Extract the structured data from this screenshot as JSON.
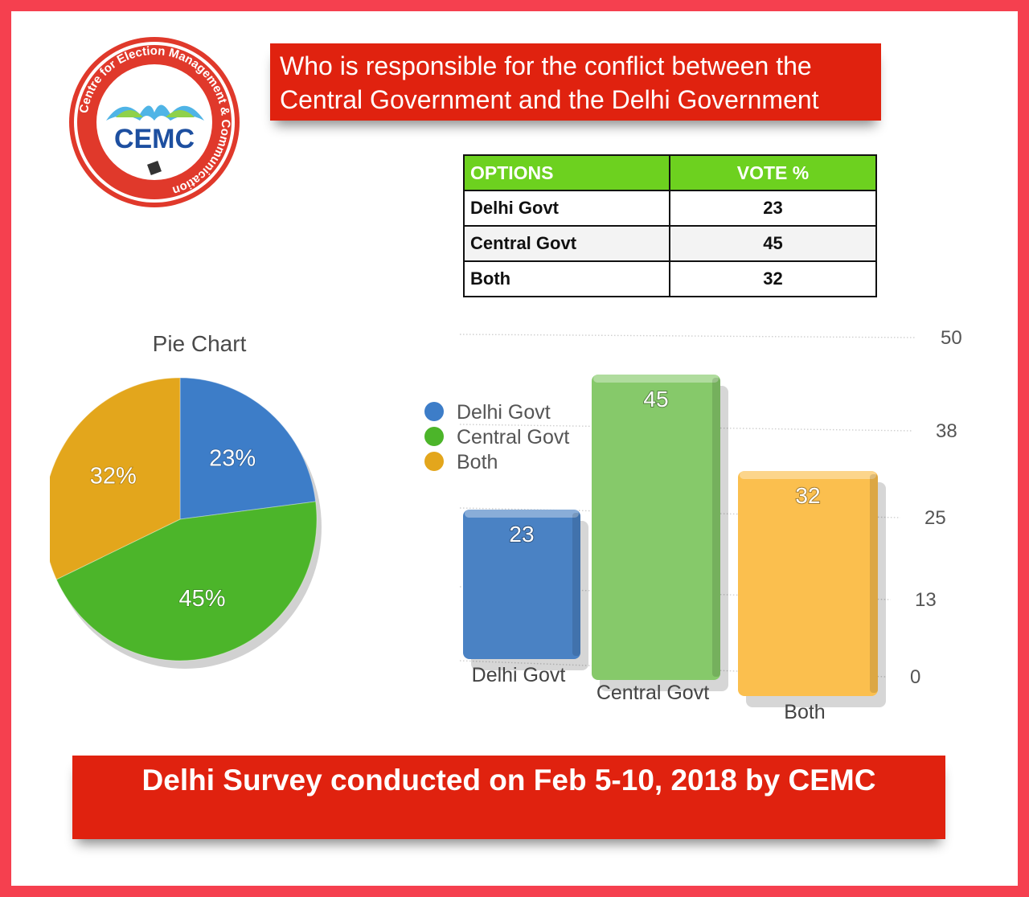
{
  "logo": {
    "ring_text": "Centre for Election Management & Communication",
    "wordmark": "CEMC"
  },
  "title": {
    "line1": "Who is responsible for the conflict between the",
    "line2": "Central Government and the Delhi Government"
  },
  "table": {
    "headers": [
      "OPTIONS",
      "VOTE %"
    ],
    "rows": [
      {
        "option": "Delhi Govt",
        "vote": "23"
      },
      {
        "option": "Central Govt",
        "vote": "45"
      },
      {
        "option": "Both",
        "vote": "32"
      }
    ]
  },
  "colors": {
    "banner": "#e0220f",
    "header_green": "#6dd11f",
    "delhi": "#3d7dc8",
    "central": "#4cb52a",
    "both": "#e3a61c"
  },
  "chart_data": [
    {
      "type": "pie",
      "title": "Pie Chart",
      "categories": [
        "Delhi Govt",
        "Central Govt",
        "Both"
      ],
      "values": [
        23,
        45,
        32
      ],
      "labels": [
        "23%",
        "45%",
        "32%"
      ],
      "colors": [
        "#3d7dc8",
        "#4cb52a",
        "#e3a61c"
      ]
    },
    {
      "type": "bar",
      "categories": [
        "Delhi Govt",
        "Central Govt",
        "Both"
      ],
      "values": [
        23,
        45,
        32
      ],
      "colors": [
        "#4a82c4",
        "#86c96a",
        "#fbbf4e"
      ],
      "ylim": [
        0,
        50
      ],
      "yticks": [
        0,
        13,
        25,
        38,
        50
      ],
      "grid": true,
      "legend": {
        "placement": "left",
        "entries": [
          "Delhi Govt",
          "Central Govt",
          "Both"
        ],
        "colors": [
          "#3d7dc8",
          "#4cb52a",
          "#e3a61c"
        ]
      }
    }
  ],
  "footer": {
    "text": "Delhi Survey conducted on Feb 5-10, 2018 by CEMC"
  }
}
